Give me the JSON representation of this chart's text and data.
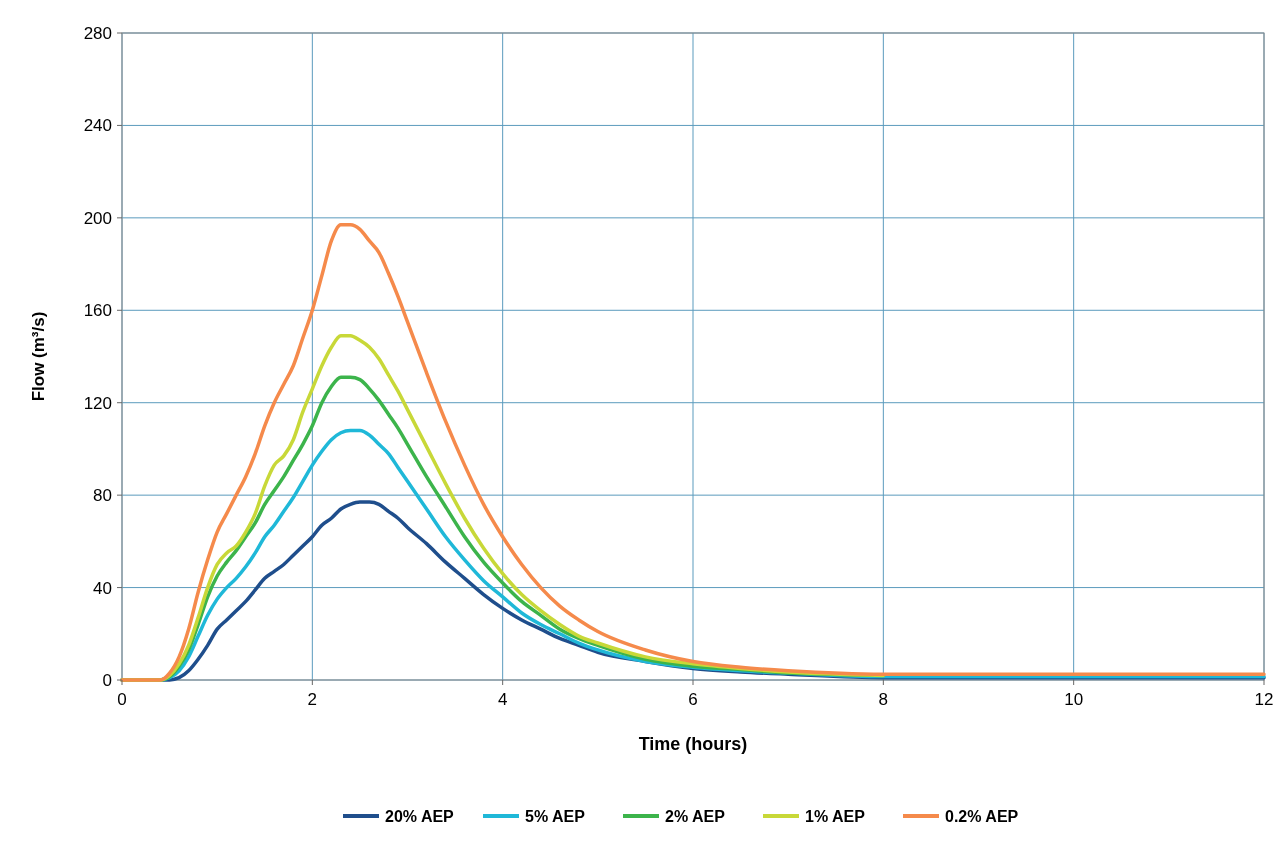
{
  "chart_data": {
    "type": "line",
    "xlabel": "Time (hours)",
    "ylabel": "Flow (m³/s)",
    "x": [
      0,
      0.4,
      0.5,
      0.6,
      0.7,
      0.8,
      0.9,
      1.0,
      1.1,
      1.2,
      1.3,
      1.4,
      1.5,
      1.6,
      1.7,
      1.8,
      1.9,
      2.0,
      2.1,
      2.2,
      2.3,
      2.4,
      2.5,
      2.6,
      2.7,
      2.8,
      2.9,
      3.0,
      3.2,
      3.4,
      3.6,
      3.8,
      4.0,
      4.2,
      4.4,
      4.6,
      4.8,
      5.0,
      5.5,
      6,
      6.5,
      7,
      8,
      9,
      10,
      12
    ],
    "series": [
      {
        "name": "20% AEP",
        "color": "#1f4e8c",
        "values": [
          0,
          0,
          0,
          1,
          4,
          9,
          15,
          22,
          26,
          30,
          34,
          39,
          44,
          47,
          50,
          54,
          58,
          62,
          67,
          70,
          74,
          76,
          77,
          77,
          76,
          73,
          70,
          66,
          59,
          51,
          44,
          37,
          31,
          26,
          22,
          18,
          15,
          12,
          8,
          5,
          3.5,
          2.5,
          1,
          1,
          1,
          1
        ]
      },
      {
        "name": "5% AEP",
        "color": "#1fb8d8",
        "values": [
          0,
          0,
          1,
          4,
          10,
          19,
          28,
          35,
          40,
          44,
          49,
          55,
          62,
          67,
          73,
          79,
          86,
          93,
          99,
          104,
          107,
          108,
          108,
          106,
          102,
          98,
          92,
          86,
          74,
          62,
          52,
          43,
          36,
          29,
          24,
          20,
          16,
          13,
          8,
          5.5,
          4,
          3,
          1.5,
          1.5,
          1.5,
          1.5
        ]
      },
      {
        "name": "2% AEP",
        "color": "#3cb44b",
        "values": [
          0,
          0,
          1.5,
          6,
          13,
          24,
          36,
          45,
          51,
          56,
          62,
          68,
          76,
          82,
          88,
          95,
          102,
          110,
          120,
          127,
          131,
          131,
          130,
          126,
          121,
          115,
          109,
          102,
          88,
          75,
          62,
          51,
          42,
          34,
          28,
          22,
          18,
          15,
          9,
          6,
          4.5,
          3,
          2,
          null,
          null,
          null
        ]
      },
      {
        "name": "1% AEP",
        "color": "#c8d838",
        "values": [
          0,
          0,
          2,
          7,
          15,
          27,
          40,
          50,
          55,
          58,
          64,
          72,
          84,
          93,
          97,
          104,
          116,
          126,
          136,
          144,
          149,
          149,
          147,
          144,
          139,
          132,
          125,
          117,
          101,
          85,
          70,
          57,
          46,
          37,
          30,
          24,
          19,
          16,
          10,
          7,
          5,
          3.5,
          2,
          null,
          null,
          null
        ]
      },
      {
        "name": "0.2% AEP",
        "color": "#f58a4b",
        "values": [
          0,
          0,
          3,
          10,
          22,
          38,
          52,
          64,
          72,
          80,
          88,
          98,
          110,
          120,
          128,
          136,
          148,
          160,
          175,
          190,
          197,
          197,
          195,
          190,
          185,
          176,
          166,
          155,
          133,
          112,
          93,
          76,
          62,
          50,
          40,
          32,
          26,
          21,
          13,
          8,
          5.5,
          4,
          2.5,
          2.5,
          2.5,
          2.5
        ]
      }
    ],
    "xlim": [
      0,
      12
    ],
    "xticks": [
      0,
      2,
      4,
      6,
      8,
      10,
      12
    ],
    "ylim": [
      0,
      280
    ],
    "yticks": [
      0,
      40,
      80,
      120,
      160,
      200,
      240,
      280
    ],
    "grid": true,
    "legend": "bottom",
    "line_style": "solid",
    "marker": "none"
  }
}
